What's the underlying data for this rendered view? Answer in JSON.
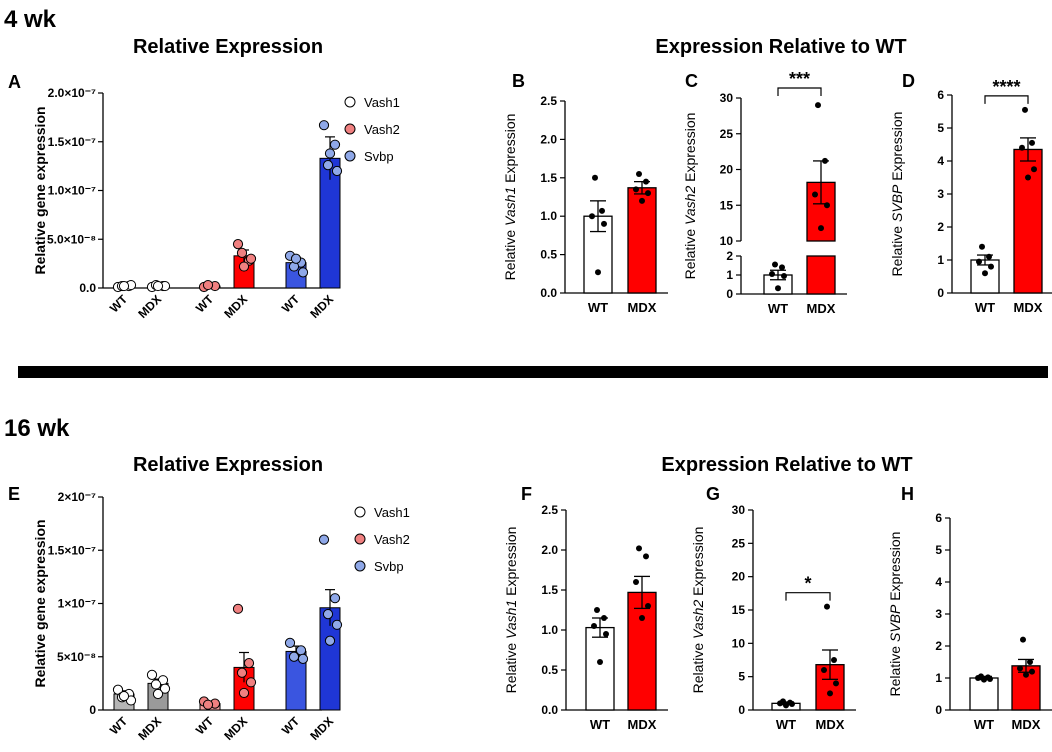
{
  "figure": {
    "section_4wk": "4 wk",
    "section_16wk": "16 wk",
    "title_relative": "Relative Expression",
    "title_relative_wt": "Expression Relative to WT",
    "title_relative_16": "Relative Expression",
    "title_relative_wt_16": "Expression Relative to WT"
  },
  "colors": {
    "wt": "#ffffff",
    "mdx_red": "#ff0000",
    "svbp_blue": "#1f36d6",
    "vash1_mdx_gray": "#9a9a9a",
    "vash2_wt_red": "#f4a0a0",
    "svbp_wt_blue": "#3a55e0",
    "dot_vash1": "#ffffff",
    "dot_vash2": "#f08080",
    "dot_svbp": "#8fa8e8"
  },
  "chart_data": [
    {
      "id": "A",
      "panel_label": "A",
      "type": "bar",
      "title": "Relative Expression",
      "ylabel": "Relative gene expression",
      "ylim": [
        0,
        2e-07
      ],
      "yticks": [
        0,
        5e-08,
        1e-07,
        1.5e-07,
        2e-07
      ],
      "yticklabels": [
        "0.0",
        "5.0×10⁻⁸",
        "1.0×10⁻⁷",
        "1.5×10⁻⁷",
        "2.0×10⁻⁷"
      ],
      "legend": [
        "Vash1",
        "Vash2",
        "Svbp"
      ],
      "groups": [
        {
          "gene": "Vash1",
          "bars": [
            {
              "label": "WT",
              "value": 2e-09,
              "err": 1e-09,
              "points": [
                1e-09,
                2e-09,
                2e-09,
                3e-09,
                2e-09
              ]
            },
            {
              "label": "MDX",
              "value": 2e-09,
              "err": 1e-09,
              "points": [
                1e-09,
                2e-09,
                3e-09,
                2e-09,
                2e-09
              ]
            }
          ]
        },
        {
          "gene": "Vash2",
          "bars": [
            {
              "label": "WT",
              "value": 2e-09,
              "err": 1e-09,
              "points": [
                1e-09,
                2e-09,
                3e-09
              ]
            },
            {
              "label": "MDX",
              "value": 3.3e-08,
              "err": 6e-09,
              "points": [
                4.5e-08,
                2.8e-08,
                3.6e-08,
                3e-08,
                2.2e-08
              ]
            }
          ]
        },
        {
          "gene": "Svbp",
          "bars": [
            {
              "label": "WT",
              "value": 2.6e-08,
              "err": 4e-09,
              "points": [
                3.3e-08,
                2.6e-08,
                2.2e-08,
                1.6e-08,
                3e-08
              ]
            },
            {
              "label": "MDX",
              "value": 1.33e-07,
              "err": 2.2e-08,
              "points": [
                1.67e-07,
                1.47e-07,
                1.26e-07,
                1.2e-07,
                1.38e-07
              ]
            }
          ]
        }
      ]
    },
    {
      "id": "B",
      "panel_label": "B",
      "type": "bar",
      "ylabel_pre": "Relative ",
      "ylabel_it": "Vash1",
      "ylabel_post": " Expression",
      "ylim": [
        0,
        2.5
      ],
      "yticks": [
        0,
        0.5,
        1,
        1.5,
        2,
        2.5
      ],
      "yticklabels": [
        "0.0",
        "0.5",
        "1.0",
        "1.5",
        "2.0",
        "2.5"
      ],
      "categories": [
        "WT",
        "MDX"
      ],
      "values": [
        1.0,
        1.37
      ],
      "errors": [
        0.2,
        0.08
      ],
      "points": [
        [
          1.5,
          1.07,
          1.0,
          0.9,
          0.27
        ],
        [
          1.55,
          1.45,
          1.35,
          1.3,
          1.2
        ]
      ],
      "sig": ""
    },
    {
      "id": "C",
      "panel_label": "C",
      "type": "bar",
      "broken_axis": true,
      "ylabel_pre": "Relative ",
      "ylabel_it": "Vash2",
      "ylabel_post": " Expression",
      "ylim_low": [
        0,
        2
      ],
      "ylim_high": [
        10,
        30
      ],
      "yticks_low": [
        0,
        1,
        2
      ],
      "yticks_high": [
        10,
        15,
        20,
        25,
        30
      ],
      "yticklabels_low": [
        "0",
        "1",
        "2"
      ],
      "yticklabels_high": [
        "10",
        "15",
        "20",
        "25",
        "30"
      ],
      "categories": [
        "WT",
        "MDX"
      ],
      "values": [
        1.0,
        18.2
      ],
      "errors": [
        0.25,
        3.0
      ],
      "points": [
        [
          1.55,
          1.4,
          1.05,
          0.95,
          0.3
        ],
        [
          29,
          21.2,
          16.5,
          15.0,
          11.8
        ]
      ],
      "sig": "***"
    },
    {
      "id": "D",
      "panel_label": "D",
      "type": "bar",
      "ylabel_pre": "Relative ",
      "ylabel_it": "SVBP",
      "ylabel_post": " Expression",
      "ylim": [
        0,
        6
      ],
      "yticks": [
        0,
        1,
        2,
        3,
        4,
        5,
        6
      ],
      "yticklabels": [
        "0",
        "1",
        "2",
        "3",
        "4",
        "5",
        "6"
      ],
      "categories": [
        "WT",
        "MDX"
      ],
      "values": [
        1.0,
        4.35
      ],
      "errors": [
        0.15,
        0.35
      ],
      "points": [
        [
          1.4,
          1.1,
          0.95,
          0.8,
          0.6
        ],
        [
          5.55,
          4.55,
          4.4,
          3.75,
          3.5
        ]
      ],
      "sig": "****"
    },
    {
      "id": "E",
      "panel_label": "E",
      "type": "bar",
      "title": "Relative Expression",
      "ylabel": "Relative gene expression",
      "ylim": [
        0,
        2e-07
      ],
      "yticks": [
        0,
        5e-08,
        1e-07,
        1.5e-07,
        2e-07
      ],
      "yticklabels": [
        "0",
        "5×10⁻⁸",
        "1×10⁻⁷",
        "1.5×10⁻⁷",
        "2×10⁻⁷"
      ],
      "legend": [
        "Vash1",
        "Vash2",
        "Svbp"
      ],
      "groups": [
        {
          "gene": "Vash1",
          "bars": [
            {
              "label": "WT",
              "value": 1.5e-08,
              "err": 3e-09,
              "points": [
                1.9e-08,
                1.5e-08,
                1.2e-08,
                9e-09,
                1.3e-08
              ]
            },
            {
              "label": "MDX",
              "value": 2.5e-08,
              "err": 4e-09,
              "points": [
                3.3e-08,
                2.8e-08,
                2.4e-08,
                2e-08,
                1.5e-08
              ]
            }
          ]
        },
        {
          "gene": "Vash2",
          "bars": [
            {
              "label": "WT",
              "value": 6e-09,
              "err": 1e-09,
              "points": [
                8e-09,
                6e-09,
                5e-09
              ]
            },
            {
              "label": "MDX",
              "value": 4e-08,
              "err": 1.4e-08,
              "points": [
                9.5e-08,
                4.4e-08,
                3.5e-08,
                2.6e-08,
                1.6e-08
              ]
            }
          ]
        },
        {
          "gene": "Svbp",
          "bars": [
            {
              "label": "WT",
              "value": 5.5e-08,
              "err": 5e-09,
              "points": [
                6.3e-08,
                5.6e-08,
                5e-08,
                4.8e-08
              ]
            },
            {
              "label": "MDX",
              "value": 9.6e-08,
              "err": 1.7e-08,
              "points": [
                1.6e-07,
                1.05e-07,
                9e-08,
                8e-08,
                6.5e-08
              ]
            }
          ]
        }
      ]
    },
    {
      "id": "F",
      "panel_label": "F",
      "type": "bar",
      "ylabel_pre": "Relative ",
      "ylabel_it": "Vash1",
      "ylabel_post": " Expression",
      "ylim": [
        0,
        2.5
      ],
      "yticks": [
        0,
        0.5,
        1,
        1.5,
        2,
        2.5
      ],
      "yticklabels": [
        "0.0",
        "0.5",
        "1.0",
        "1.5",
        "2.0",
        "2.5"
      ],
      "categories": [
        "WT",
        "MDX"
      ],
      "values": [
        1.03,
        1.47
      ],
      "errors": [
        0.12,
        0.2
      ],
      "points": [
        [
          1.25,
          1.15,
          1.05,
          0.95,
          0.6
        ],
        [
          2.02,
          1.92,
          1.6,
          1.3,
          1.15
        ]
      ],
      "sig": ""
    },
    {
      "id": "G",
      "panel_label": "G",
      "type": "bar",
      "ylabel_pre": "Relative ",
      "ylabel_it": "Vash2",
      "ylabel_post": " Expression",
      "ylim": [
        0,
        30
      ],
      "yticks": [
        0,
        5,
        10,
        15,
        20,
        25,
        30
      ],
      "yticklabels": [
        "0",
        "5",
        "10",
        "15",
        "20",
        "25",
        "30"
      ],
      "categories": [
        "WT",
        "MDX"
      ],
      "values": [
        1.0,
        6.8
      ],
      "errors": [
        0.2,
        2.2
      ],
      "points": [
        [
          1.3,
          1.1,
          1.0,
          0.9,
          0.7
        ],
        [
          15.5,
          7.5,
          6.0,
          4.0,
          2.5
        ]
      ],
      "sig": "*"
    },
    {
      "id": "H",
      "panel_label": "H",
      "type": "bar",
      "ylabel_pre": "Relative ",
      "ylabel_it": "SVBP",
      "ylabel_post": " Expression",
      "ylim": [
        0,
        6
      ],
      "yticks": [
        0,
        1,
        2,
        3,
        4,
        5,
        6
      ],
      "yticklabels": [
        "0",
        "1",
        "2",
        "3",
        "4",
        "5",
        "6"
      ],
      "categories": [
        "WT",
        "MDX"
      ],
      "values": [
        1.0,
        1.38
      ],
      "errors": [
        0.05,
        0.2
      ],
      "points": [
        [
          1.05,
          1.02,
          1.0,
          0.97,
          0.95
        ],
        [
          2.2,
          1.5,
          1.3,
          1.2,
          1.1
        ]
      ],
      "sig": ""
    }
  ]
}
